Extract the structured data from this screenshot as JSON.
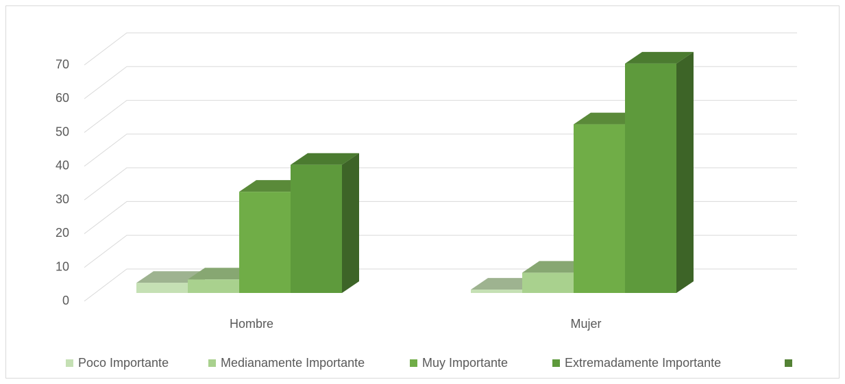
{
  "chart_data": {
    "type": "bar3d",
    "categories": [
      "Hombre",
      "Mujer"
    ],
    "series": [
      {
        "name": "Poco Importante",
        "color": "#c5e0b4",
        "values": [
          3,
          1
        ]
      },
      {
        "name": "Medianamente Importante",
        "color": "#a9d18e",
        "values": [
          4,
          6
        ]
      },
      {
        "name": "Muy Importante",
        "color": "#70ad47",
        "values": [
          30,
          50
        ]
      },
      {
        "name": "Extremadamente Importante",
        "color": "#5e9a3c",
        "values": [
          38,
          68
        ]
      },
      {
        "name": null,
        "color": "#548235",
        "values": [
          null,
          null
        ]
      }
    ],
    "ylim": [
      0,
      70
    ],
    "yticks": [
      0,
      10,
      20,
      30,
      40,
      50,
      60,
      70
    ],
    "grid": true
  }
}
